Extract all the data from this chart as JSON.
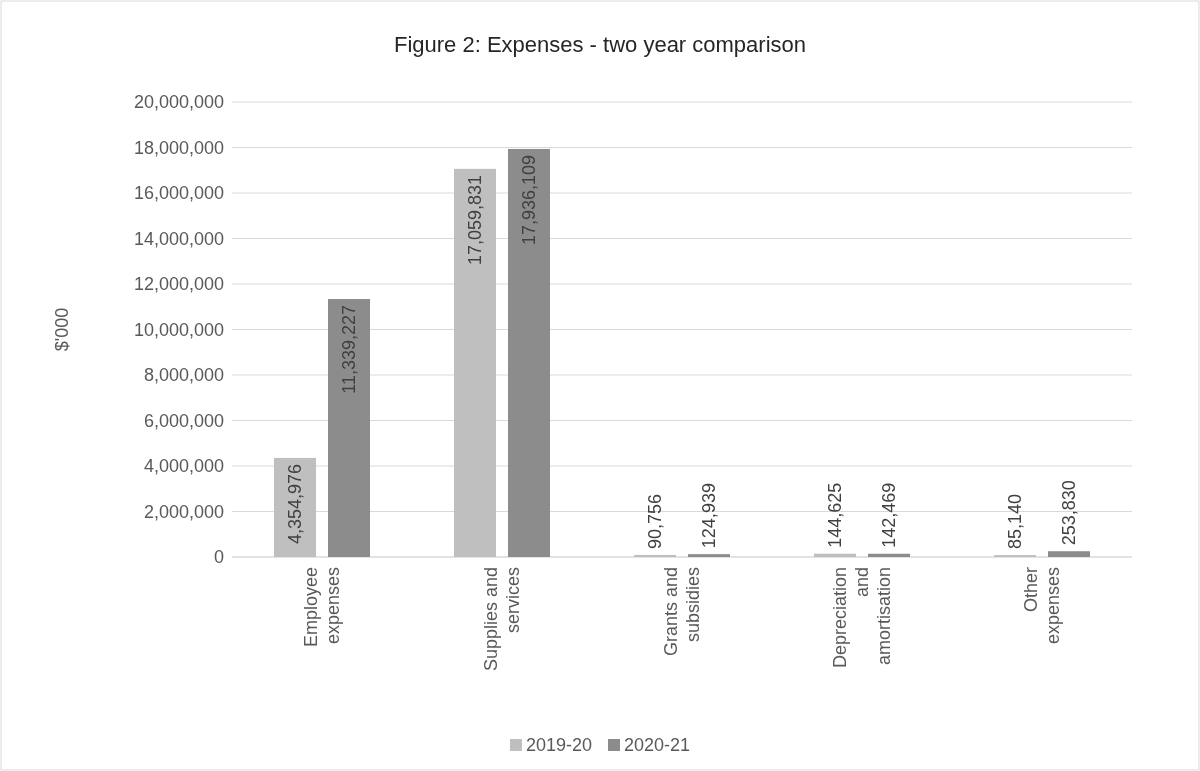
{
  "chart_data": {
    "type": "bar",
    "title": "Figure 2: Expenses - two year comparison",
    "ylabel": "$'000",
    "categories": [
      "Employee expenses",
      "Supplies and services",
      "Grants and subsidies",
      "Depreciation and amortisation",
      "Other expenses"
    ],
    "series": [
      {
        "name": "2019-20",
        "color": "#bfbfbf",
        "values": [
          4354976,
          17059831,
          90756,
          144625,
          85140
        ],
        "value_labels": [
          "4,354,976",
          "17,059,831",
          "90,756",
          "144,625",
          "85,140"
        ]
      },
      {
        "name": "2020-21",
        "color": "#8c8c8c",
        "values": [
          11339227,
          17936109,
          124939,
          142469,
          253830
        ],
        "value_labels": [
          "11,339,227",
          "17,936,109",
          "124,939",
          "142,469",
          "253,830"
        ]
      }
    ],
    "ylim": [
      0,
      20000000
    ],
    "yticks": [
      {
        "value": 0,
        "label": "0"
      },
      {
        "value": 2000000,
        "label": "2,000,000"
      },
      {
        "value": 4000000,
        "label": "4,000,000"
      },
      {
        "value": 6000000,
        "label": "6,000,000"
      },
      {
        "value": 8000000,
        "label": "8,000,000"
      },
      {
        "value": 10000000,
        "label": "10,000,000"
      },
      {
        "value": 12000000,
        "label": "12,000,000"
      },
      {
        "value": 14000000,
        "label": "14,000,000"
      },
      {
        "value": 16000000,
        "label": "16,000,000"
      },
      {
        "value": 18000000,
        "label": "18,000,000"
      },
      {
        "value": 20000000,
        "label": "20,000,000"
      }
    ],
    "grid": "y",
    "legend": "bottom"
  }
}
